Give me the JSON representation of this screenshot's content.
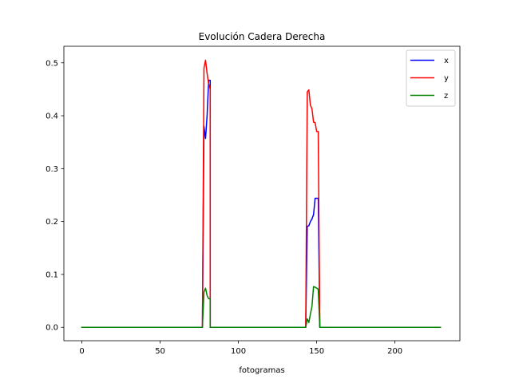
{
  "chart_data": {
    "type": "line",
    "title": "Evolución Cadera Derecha",
    "xlabel": "fotogramas",
    "ylabel": "",
    "xlim": [
      -11.5,
      241.5
    ],
    "ylim": [
      -0.0253,
      0.5313
    ],
    "xticks": [
      0,
      50,
      100,
      150,
      200
    ],
    "yticks": [
      0.0,
      0.1,
      0.2,
      0.3,
      0.4,
      0.5
    ],
    "ytick_labels": [
      "0.0",
      "0.1",
      "0.2",
      "0.3",
      "0.4",
      "0.5"
    ],
    "grid": false,
    "legend": "top-right",
    "series": [
      {
        "name": "x",
        "color": "#0000ff",
        "points": [
          [
            0,
            0
          ],
          [
            77,
            0
          ],
          [
            78,
            0.38
          ],
          [
            79,
            0.357
          ],
          [
            80,
            0.4
          ],
          [
            81,
            0.467
          ],
          [
            82,
            0.467
          ],
          [
            82,
            0
          ],
          [
            143,
            0
          ],
          [
            144,
            0.191
          ],
          [
            145,
            0.192
          ],
          [
            146,
            0.2
          ],
          [
            147,
            0.205
          ],
          [
            148,
            0.213
          ],
          [
            149,
            0.244
          ],
          [
            150,
            0.244
          ],
          [
            151,
            0.244
          ],
          [
            152,
            0
          ],
          [
            229,
            0
          ]
        ]
      },
      {
        "name": "y",
        "color": "#ff0000",
        "points": [
          [
            0,
            0
          ],
          [
            77,
            0
          ],
          [
            78,
            0.49
          ],
          [
            79,
            0.505
          ],
          [
            80,
            0.48
          ],
          [
            81,
            0.46
          ],
          [
            82,
            0.45
          ],
          [
            82,
            0
          ],
          [
            143,
            0
          ],
          [
            144,
            0.445
          ],
          [
            145,
            0.449
          ],
          [
            146,
            0.42
          ],
          [
            147,
            0.413
          ],
          [
            148,
            0.388
          ],
          [
            149,
            0.387
          ],
          [
            150,
            0.37
          ],
          [
            151,
            0.37
          ],
          [
            152,
            0
          ],
          [
            229,
            0
          ]
        ]
      },
      {
        "name": "z",
        "color": "#008000",
        "points": [
          [
            0,
            0
          ],
          [
            77,
            0
          ],
          [
            78,
            0.067
          ],
          [
            79,
            0.074
          ],
          [
            80,
            0.06
          ],
          [
            81,
            0.054
          ],
          [
            82,
            0.054
          ],
          [
            82,
            0
          ],
          [
            143,
            0
          ],
          [
            144,
            0.016
          ],
          [
            145,
            0.009
          ],
          [
            146,
            0.025
          ],
          [
            147,
            0.04
          ],
          [
            148,
            0.077
          ],
          [
            149,
            0.076
          ],
          [
            150,
            0.074
          ],
          [
            151,
            0.072
          ],
          [
            152,
            0
          ],
          [
            229,
            0
          ]
        ]
      }
    ]
  }
}
